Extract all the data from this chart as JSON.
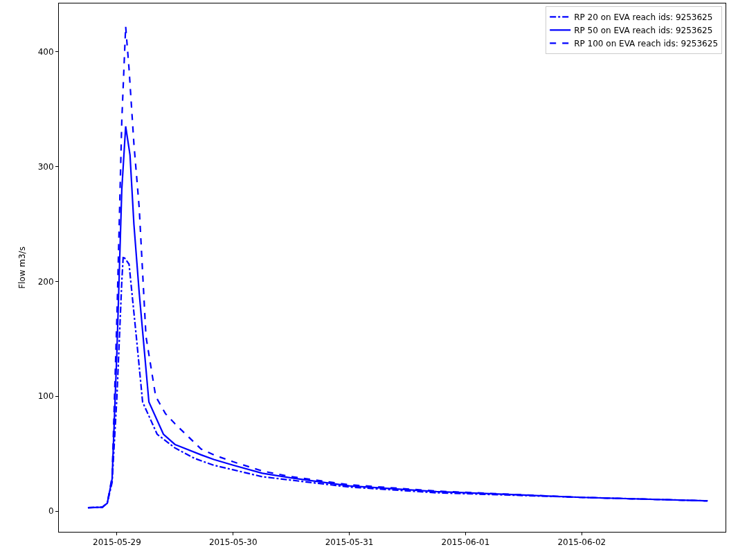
{
  "chart_data": {
    "type": "line",
    "ylabel": "Flow m3/s",
    "xlim": [
      "2015-05-28T12:00",
      "2015-06-03T05:42"
    ],
    "xticks": [
      {
        "value": "2015-05-29",
        "label": "2015-05-29"
      },
      {
        "value": "2015-05-30",
        "label": "2015-05-30"
      },
      {
        "value": "2015-05-31",
        "label": "2015-05-31"
      },
      {
        "value": "2015-06-01",
        "label": "2015-06-01"
      },
      {
        "value": "2015-06-02",
        "label": "2015-06-02"
      }
    ],
    "ylim": [
      -18,
      442
    ],
    "yticks": [
      0,
      100,
      200,
      300,
      400
    ],
    "legend": "top right",
    "marker": "none",
    "series": [
      {
        "name": "RP 20 on EVA reach ids: 9253625",
        "color": "#0000ff",
        "line_style": "dashdot",
        "x": [
          "2015-05-28T18:00",
          "2015-05-28T21:00",
          "2015-05-28T22:00",
          "2015-05-28T23:00",
          "2015-05-29T00:00",
          "2015-05-29T01:00",
          "2015-05-29T01:18",
          "2015-05-29T02:30",
          "2015-05-29T04:00",
          "2015-05-29T05:18",
          "2015-05-29T08:18",
          "2015-05-29T12:00",
          "2015-05-29T16:00",
          "2015-05-29T20:00",
          "2015-05-30T00:00",
          "2015-05-30T06:00",
          "2015-05-30T12:00",
          "2015-05-31T00:00",
          "2015-05-31T18:00",
          "2015-06-02T00:00",
          "2015-06-03T02:00"
        ],
        "values": [
          3,
          3.5,
          7,
          25,
          100,
          200,
          222,
          215,
          152,
          95,
          67,
          55,
          46,
          40,
          36,
          30,
          27,
          21,
          16,
          12,
          9
        ]
      },
      {
        "name": "RP 50 on EVA reach ids: 9253625",
        "color": "#0000ff",
        "line_style": "solid",
        "x": [
          "2015-05-28T18:00",
          "2015-05-28T21:00",
          "2015-05-28T22:00",
          "2015-05-28T23:00",
          "2015-05-29T00:00",
          "2015-05-29T01:00",
          "2015-05-29T01:48",
          "2015-05-29T02:42",
          "2015-05-29T03:30",
          "2015-05-29T04:36",
          "2015-05-29T06:36",
          "2015-05-29T09:36",
          "2015-05-29T12:00",
          "2015-05-29T17:24",
          "2015-05-29T20:00",
          "2015-05-30T00:00",
          "2015-05-30T06:00",
          "2015-05-30T12:00",
          "2015-05-31T00:00",
          "2015-05-31T18:00",
          "2015-06-02T00:00",
          "2015-06-03T02:00"
        ],
        "values": [
          3,
          3.5,
          7,
          28,
          140,
          280,
          335,
          310,
          250,
          190,
          95,
          67,
          58,
          49,
          45,
          40,
          33,
          29,
          22,
          17,
          12,
          9
        ]
      },
      {
        "name": "RP 100 on EVA reach ids: 9253625",
        "color": "#0000ff",
        "line_style": "dash",
        "x": [
          "2015-05-28T18:00",
          "2015-05-28T21:00",
          "2015-05-28T22:00",
          "2015-05-28T23:00",
          "2015-05-29T00:00",
          "2015-05-29T01:00",
          "2015-05-29T01:48",
          "2015-05-29T02:30",
          "2015-05-29T03:30",
          "2015-05-29T04:36",
          "2015-05-29T06:00",
          "2015-05-29T08:00",
          "2015-05-29T10:00",
          "2015-05-29T12:00",
          "2015-05-29T17:24",
          "2015-05-29T20:00",
          "2015-05-30T00:00",
          "2015-05-30T06:00",
          "2015-05-30T12:00",
          "2015-05-31T00:00",
          "2015-05-31T18:00",
          "2015-06-02T00:00",
          "2015-06-03T02:00"
        ],
        "values": [
          3,
          3.5,
          7,
          30,
          170,
          340,
          422,
          385,
          320,
          264,
          152,
          100,
          85,
          76,
          54,
          49,
          43,
          35,
          30,
          23,
          17.5,
          12,
          9
        ]
      }
    ]
  }
}
